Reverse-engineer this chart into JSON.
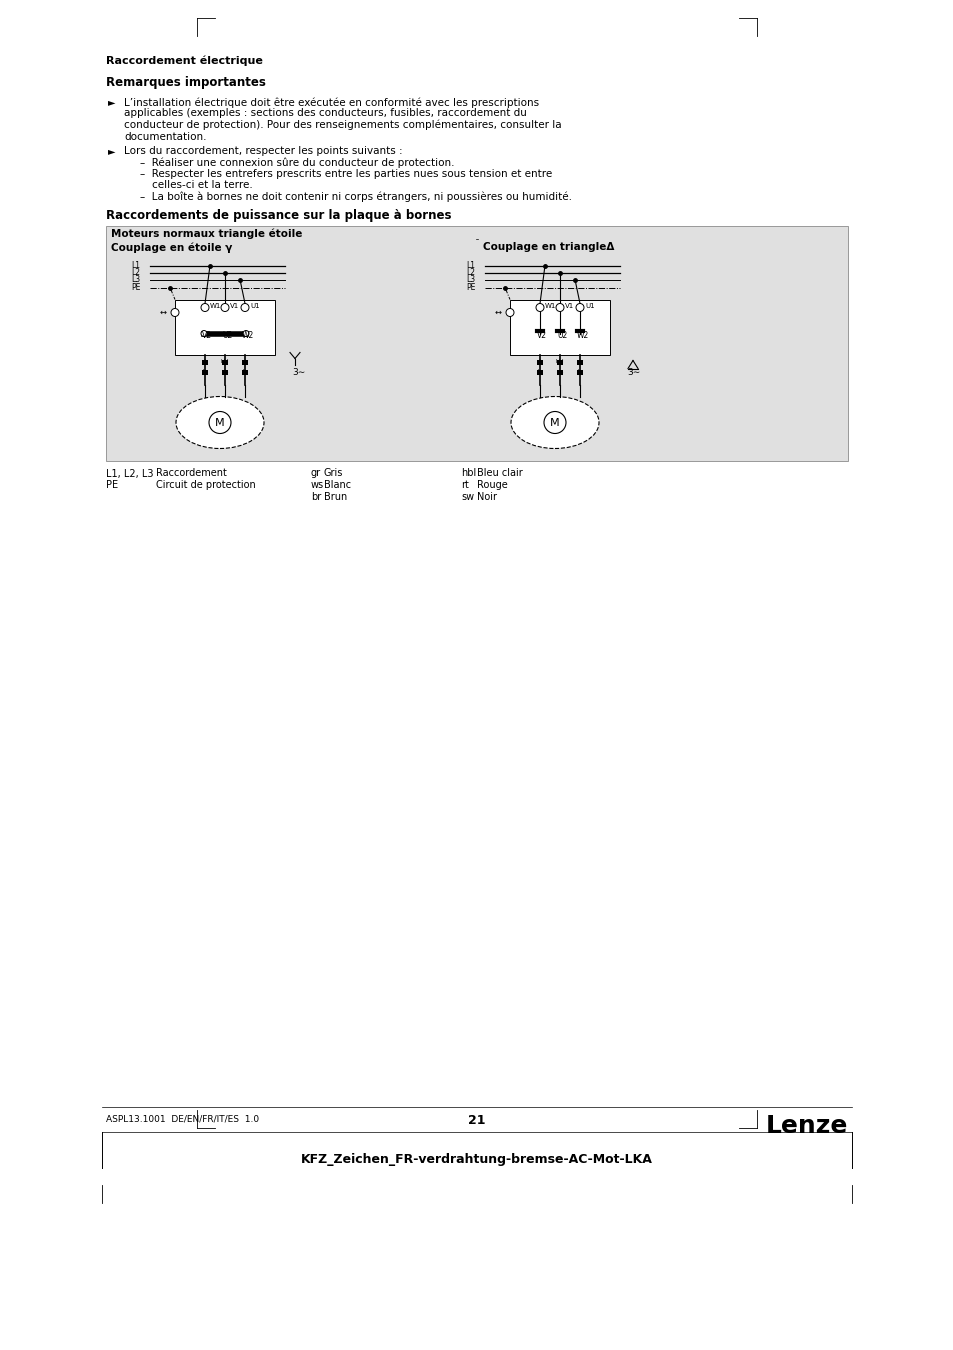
{
  "title_main": "Raccordement électrique",
  "title_sub": "Remarques importantes",
  "b1_lines": [
    "L’installation électrique doit être exécutée en conformité avec les prescriptions",
    "applicables (exemples : sections des conducteurs, fusibles, raccordement du",
    "conducteur de protection). Pour des renseignements complémentaires, consulter la",
    "documentation."
  ],
  "b2_intro": "Lors du raccordement, respecter les points suivants :",
  "b2_subs": [
    "Réaliser une connexion sûre du conducteur de protection.",
    "Respecter les entrefers prescrits entre les parties nues sous tension et entre",
    "celles-ci et la terre.",
    "La boîte à bornes ne doit contenir ni corps étrangers, ni poussières ou humidité."
  ],
  "section_title": "Raccordements de puissance sur la plaque à bornes",
  "box_title": "Moteurs normaux triangle étoile",
  "left_label": "Couplage en étoile γ",
  "right_label": "Couplage en triangleΔ",
  "footer_left": "ASPL13.1001  DE/EN/FR/IT/ES  1.0",
  "footer_center": "21",
  "footer_right": "Lenze",
  "bottom_label": "KFZ_Zeichen_FR-verdrahtung-bremse-AC-Mot-LKA"
}
